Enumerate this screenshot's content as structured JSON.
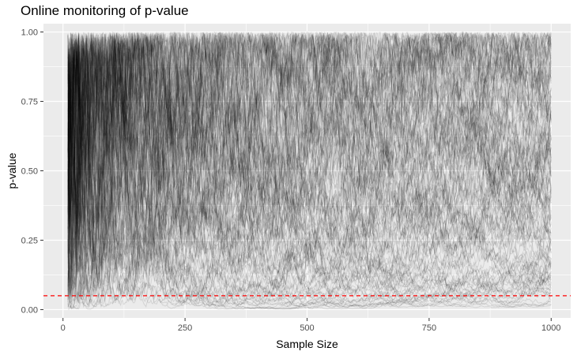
{
  "chart_data": {
    "type": "line",
    "title": "Online monitoring of p-value",
    "xlabel": "Sample Size",
    "ylabel": "p-value",
    "xlim": [
      -40,
      1040
    ],
    "ylim": [
      -0.03,
      1.03
    ],
    "x_ticks": [
      0,
      250,
      500,
      750,
      1000
    ],
    "x_tick_labels": [
      "0",
      "250",
      "500",
      "750",
      "1000"
    ],
    "y_ticks": [
      0,
      0.25,
      0.5,
      0.75,
      1.0
    ],
    "y_tick_labels": [
      "0.00",
      "0.25",
      "0.50",
      "0.75",
      "1.00"
    ],
    "grid": true,
    "series_description": "many simulated p-value paths, sample size 10 to 1000",
    "num_series": 150,
    "x_start": 10,
    "x_end": 1000,
    "line_color": "#000000",
    "line_opacity": 0.1,
    "reference_line": {
      "y": 0.05,
      "color": "#ff0000",
      "style": "dashed"
    },
    "panel_background": "#ebebeb",
    "grid_color": "#ffffff"
  }
}
